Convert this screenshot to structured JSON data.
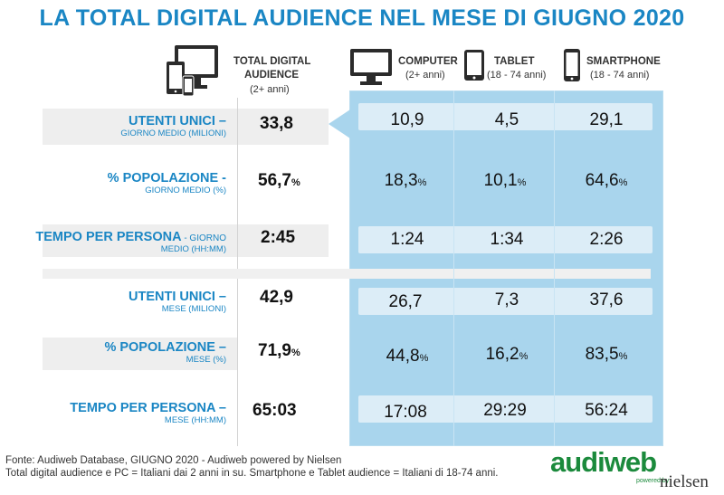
{
  "title": "LA TOTAL DIGITAL AUDIENCE NEL MESE DI GIUGNO 2020",
  "columns": {
    "total": {
      "label_1": "TOTAL DIGITAL",
      "label_2": "AUDIENCE",
      "sub": "(2+ anni)",
      "icon": "devices-icon"
    },
    "computer": {
      "label": "COMPUTER",
      "sub": "(2+ anni)",
      "icon": "monitor-icon"
    },
    "tablet": {
      "label": "TABLET",
      "sub": "(18 - 74 anni)",
      "icon": "tablet-icon"
    },
    "smartphone": {
      "label": "SMARTPHONE",
      "sub": "(18 - 74 anni)",
      "icon": "smartphone-icon"
    }
  },
  "rows": [
    {
      "main": "UTENTI UNICI –",
      "sub": "GIORNO MEDIO (MILIONI)",
      "total": "33,8",
      "total_pct": "",
      "computer": "10,9",
      "computer_pct": "",
      "tablet": "4,5",
      "tablet_pct": "",
      "smartphone": "29,1",
      "smartphone_pct": ""
    },
    {
      "main": "% POPOLAZIONE -",
      "sub": "GIORNO MEDIO (%)",
      "total": "56,7",
      "total_pct": "%",
      "computer": "18,3",
      "computer_pct": "%",
      "tablet": "10,1",
      "tablet_pct": "%",
      "smartphone": "64,6",
      "smartphone_pct": "%"
    },
    {
      "main": "TEMPO PER PERSONA",
      "main_tail": " - GIORNO",
      "sub": "MEDIO (HH:MM)",
      "total": "2:45",
      "total_pct": "",
      "computer": "1:24",
      "computer_pct": "",
      "tablet": "1:34",
      "tablet_pct": "",
      "smartphone": "2:26",
      "smartphone_pct": ""
    },
    {
      "main": "UTENTI UNICI –",
      "sub": "MESE (MILIONI)",
      "total": "42,9",
      "total_pct": "",
      "computer": "26,7",
      "computer_pct": "",
      "tablet": "7,3",
      "tablet_pct": "",
      "smartphone": "37,6",
      "smartphone_pct": ""
    },
    {
      "main": "% POPOLAZIONE –",
      "sub": "MESE (%)",
      "total": "71,9",
      "total_pct": "%",
      "computer": "44,8",
      "computer_pct": "%",
      "tablet": "16,2",
      "tablet_pct": "%",
      "smartphone": "83,5",
      "smartphone_pct": "%"
    },
    {
      "main": "TEMPO PER PERSONA –",
      "sub": "MESE (HH:MM)",
      "total": "65:03",
      "total_pct": "",
      "computer": "17:08",
      "computer_pct": "",
      "tablet": "29:29",
      "tablet_pct": "",
      "smartphone": "56:24",
      "smartphone_pct": ""
    }
  ],
  "footer": {
    "line1": "Fonte: Audiweb Database, GIUGNO 2020 - Audiweb powered by Nielsen",
    "line2": "Total digital audience e PC = Italiani dai 2 anni in su. Smartphone e Tablet audience = Italiani di 18-74 anni."
  },
  "logo": {
    "brand": "audiweb",
    "powered": "powered by",
    "partner": "nielsen"
  },
  "colors": {
    "accent": "#1a86c4",
    "panel": "#a9d5ed",
    "logo_green": "#1b8a3c"
  }
}
